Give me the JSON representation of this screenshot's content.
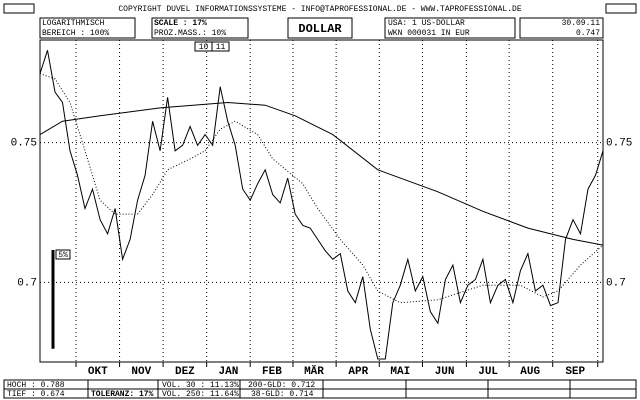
{
  "header": {
    "copyright": "COPYRIGHT DUVEL INFORMATIONSSYSTEME - INFO@TAPROFESSIONAL.DE - WWW.TAPROFESSIONAL.DE",
    "scale_type": "LOGARITHMISCH",
    "range": "BEREICH : 100%",
    "scale": "SCALE : 17%",
    "proz": "PROZ.MASS.: 10%",
    "title": "DOLLAR",
    "name": "USA: 1 US-DOLLAR",
    "wkn": "WKN 000031  IN EUR",
    "date": "30.09.11",
    "last": "0.747",
    "markers": [
      "10",
      "11"
    ]
  },
  "footer": {
    "high": "HOCH : 0.788",
    "low": "TIEF : 0.674",
    "tolerance": "TOLERANZ: 17%",
    "vol30": "VOL. 30 : 11.13%",
    "vol250": "VOL. 250: 11.64%",
    "gld200": "200-GLD: 0.712",
    "gld38": "38-GLD: 0.714"
  },
  "chart_data": {
    "type": "line",
    "log_scale": true,
    "grid": true,
    "ylim": [
      0.673,
      0.789
    ],
    "yticks": [
      0.75,
      0.7
    ],
    "xlim": [
      0,
      75
    ],
    "xticks": [
      {
        "value": 7.7,
        "label": "OKT"
      },
      {
        "value": 13.5,
        "label": "NOV"
      },
      {
        "value": 19.3,
        "label": "DEZ"
      },
      {
        "value": 25.1,
        "label": "JAN"
      },
      {
        "value": 30.9,
        "label": "FEB"
      },
      {
        "value": 36.5,
        "label": "MÄR"
      },
      {
        "value": 42.4,
        "label": "APR"
      },
      {
        "value": 48,
        "label": "MAI"
      },
      {
        "value": 53.9,
        "label": "JUN"
      },
      {
        "value": 59.7,
        "label": "JUL"
      },
      {
        "value": 65.3,
        "label": "AUG"
      },
      {
        "value": 71.3,
        "label": "SEP"
      }
    ],
    "scale_bar": {
      "value": 5,
      "label": "5%"
    },
    "series": [
      {
        "color": "#000000",
        "style": "solid",
        "values": [
          0.776,
          0.785,
          0.769,
          0.765,
          0.747,
          0.738,
          0.726,
          0.733,
          0.722,
          0.717,
          0.726,
          0.708,
          0.715,
          0.729,
          0.738,
          0.758,
          0.747,
          0.767,
          0.747,
          0.749,
          0.756,
          0.749,
          0.753,
          0.749,
          0.771,
          0.758,
          0.749,
          0.733,
          0.729,
          0.735,
          0.74,
          0.731,
          0.728,
          0.737,
          0.724,
          0.72,
          0.719,
          0.715,
          0.711,
          0.708,
          0.71,
          0.697,
          0.693,
          0.702,
          0.684,
          0.674,
          0.674,
          0.693,
          0.699,
          0.708,
          0.697,
          0.702,
          0.69,
          0.686,
          0.701,
          0.706,
          0.693,
          0.699,
          0.701,
          0.708,
          0.693,
          0.699,
          0.701,
          0.693,
          0.704,
          0.71,
          0.697,
          0.699,
          0.692,
          0.693,
          0.715,
          0.722,
          0.717,
          0.733,
          0.738,
          0.747
        ]
      },
      {
        "color": "#000000",
        "style": "solid",
        "x": [
          0,
          3,
          8,
          16,
          25,
          30,
          34,
          39,
          45,
          53,
          59,
          65,
          71,
          75
        ],
        "values": [
          0.753,
          0.758,
          0.76,
          0.763,
          0.765,
          0.764,
          0.76,
          0.753,
          0.74,
          0.732,
          0.725,
          0.719,
          0.715,
          0.713
        ]
      },
      {
        "color": "#000000",
        "style": "dotted",
        "x": [
          0,
          2,
          4,
          6,
          8,
          10,
          13,
          15,
          17,
          20,
          22,
          24,
          26,
          29,
          31,
          35,
          37,
          40,
          43,
          45,
          48,
          53,
          59,
          64,
          67,
          69,
          72,
          75
        ],
        "values": [
          0.776,
          0.774,
          0.765,
          0.747,
          0.729,
          0.724,
          0.724,
          0.731,
          0.74,
          0.744,
          0.747,
          0.755,
          0.758,
          0.753,
          0.744,
          0.735,
          0.726,
          0.715,
          0.706,
          0.697,
          0.693,
          0.694,
          0.699,
          0.699,
          0.695,
          0.697,
          0.706,
          0.713
        ]
      }
    ]
  }
}
